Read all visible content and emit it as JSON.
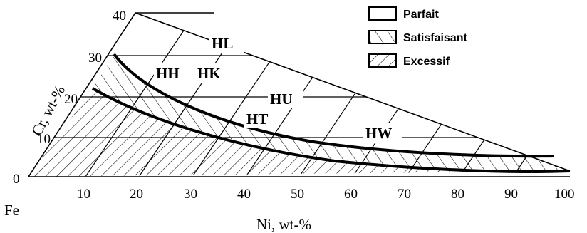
{
  "diagram": {
    "y_axis": {
      "label": "Cr, wt-%",
      "ticks": [
        "0",
        "10",
        "20",
        "30",
        "40"
      ]
    },
    "x_axis": {
      "label": "Ni, wt-%",
      "ticks": [
        "10",
        "20",
        "30",
        "40",
        "50",
        "60",
        "70",
        "80",
        "90",
        "100"
      ]
    },
    "corner_label": "Fe",
    "region_labels": {
      "HL": "HL",
      "HH": "HH",
      "HK": "HK",
      "HU": "HU",
      "HT": "HT",
      "HW": "HW"
    },
    "legend": [
      {
        "label": "Parfait",
        "pattern": "none"
      },
      {
        "label": "Satisfaisant",
        "pattern": "sparse-backslash-hatch"
      },
      {
        "label": "Excessif",
        "pattern": "dense-slash-hatch"
      }
    ]
  }
}
